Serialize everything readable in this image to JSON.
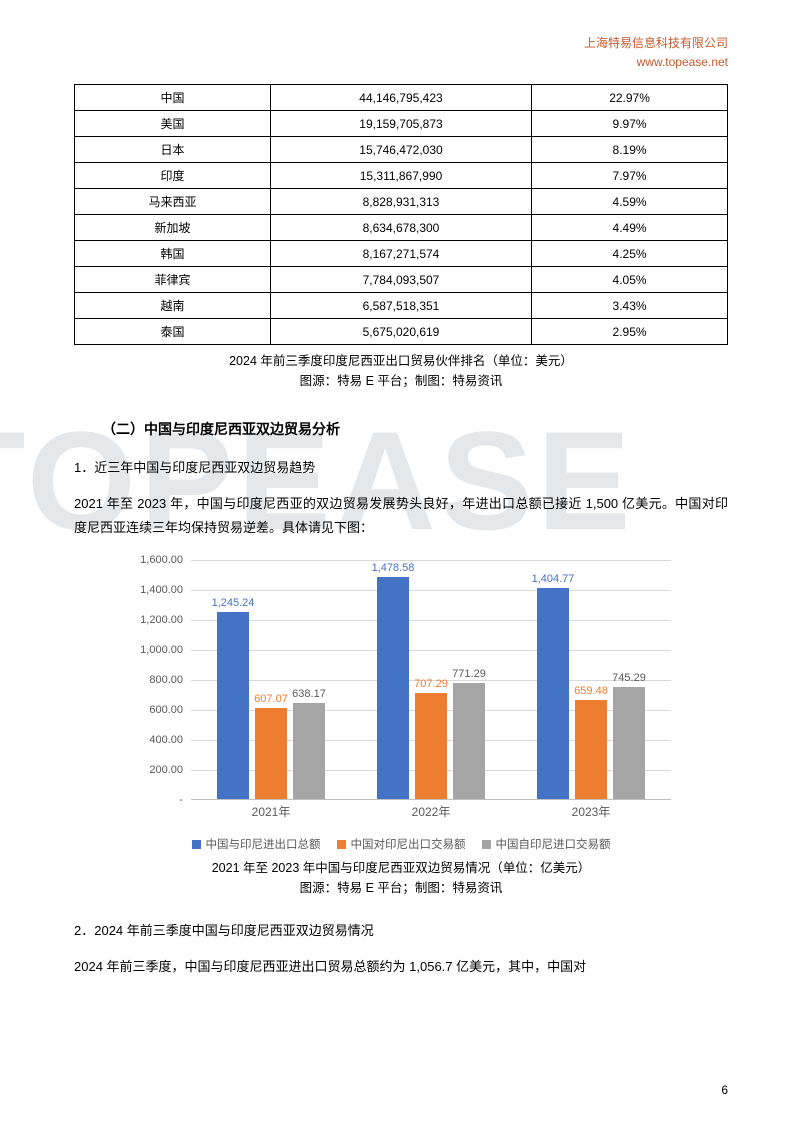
{
  "header": {
    "brand_cn": "上海特易信息科技有限公司",
    "brand_url": "www.topease.net"
  },
  "watermark": "TOPEASE",
  "table": {
    "rows": [
      [
        "中国",
        "44,146,795,423",
        "22.97%"
      ],
      [
        "美国",
        "19,159,705,873",
        "9.97%"
      ],
      [
        "日本",
        "15,746,472,030",
        "8.19%"
      ],
      [
        "印度",
        "15,311,867,990",
        "7.97%"
      ],
      [
        "马来西亚",
        "8,828,931,313",
        "4.59%"
      ],
      [
        "新加坡",
        "8,634,678,300",
        "4.49%"
      ],
      [
        "韩国",
        "8,167,271,574",
        "4.25%"
      ],
      [
        "菲律宾",
        "7,784,093,507",
        "4.05%"
      ],
      [
        "越南",
        "6,587,518,351",
        "3.43%"
      ],
      [
        "泰国",
        "5,675,020,619",
        "2.95%"
      ]
    ],
    "caption_line1": "2024 年前三季度印度尼西亚出口贸易伙伴排名（单位：美元）",
    "caption_line2": "图源：特易 E 平台；制图：特易资讯"
  },
  "section2_title": "（二）中国与印度尼西亚双边贸易分析",
  "sub1_title": "1．近三年中国与印度尼西亚双边贸易趋势",
  "para1": "2021 年至 2023 年，中国与印度尼西亚的双边贸易发展势头良好，年进出口总额已接近 1,500 亿美元。中国对印度尼西亚连续三年均保持贸易逆差。具体请见下图：",
  "chart": {
    "type": "bar",
    "categories": [
      "2021年",
      "2022年",
      "2023年"
    ],
    "series": [
      {
        "name": "中国与印尼进出口总额",
        "color": "#4472c4",
        "values": [
          1245.24,
          1478.58,
          1404.77
        ],
        "label_color": "#4472c4"
      },
      {
        "name": "中国对印尼出口交易额",
        "color": "#ed7d31",
        "values": [
          607.07,
          707.29,
          659.48
        ],
        "label_color": "#ed7d31"
      },
      {
        "name": "中国自印尼进口交易额",
        "color": "#a5a5a5",
        "values": [
          638.17,
          771.29,
          745.29
        ],
        "label_color": "#595959"
      }
    ],
    "ylim": [
      0,
      1600
    ],
    "ytick_step": 200,
    "yticks": [
      "-",
      "200.00",
      "400.00",
      "600.00",
      "800.00",
      "1,000.00",
      "1,200.00",
      "1,400.00",
      "1,600.00"
    ],
    "labels": [
      [
        "1,245.24",
        "607.07",
        "638.17"
      ],
      [
        "1,478.58",
        "707.29",
        "771.29"
      ],
      [
        "1,404.77",
        "659.48",
        "745.29"
      ]
    ],
    "caption_line1": "2021 年至 2023 年中国与印度尼西亚双边贸易情况（单位：亿美元）",
    "caption_line2": "图源：特易 E 平台；制图：特易资讯"
  },
  "sub2_title": "2．2024 年前三季度中国与印度尼西亚双边贸易情况",
  "para2": "2024 年前三季度，中国与印度尼西亚进出口贸易总额约为 1,056.7 亿美元，其中，中国对",
  "page_number": "6"
}
